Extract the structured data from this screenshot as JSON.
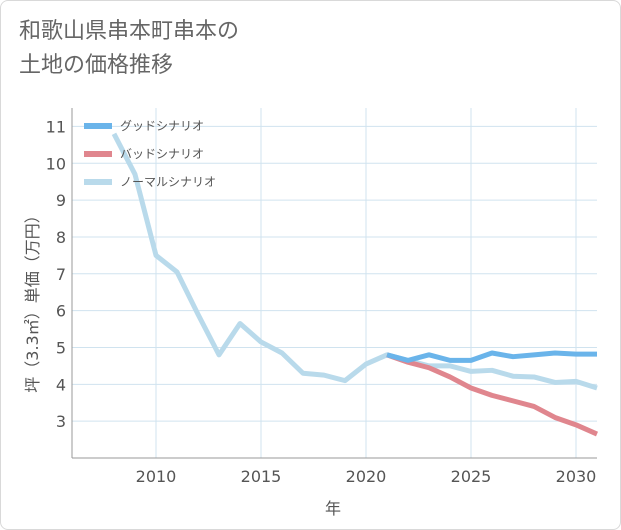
{
  "title_lines": [
    "和歌山県串本町串本の",
    "土地の価格推移"
  ],
  "colors": {
    "good": "#6ab4ea",
    "bad": "#e0868e",
    "normal": "#b9daeb",
    "grid": "#d0e3ef",
    "axis": "#999999"
  },
  "chart_data": {
    "type": "line",
    "title": "和歌山県串本町串本の土地の価格推移",
    "xlabel": "年",
    "ylabel": "坪（3.3㎡）単価（万円）",
    "xlim": [
      2006,
      2031
    ],
    "ylim": [
      2,
      11.5
    ],
    "x_ticks": [
      2010,
      2015,
      2020,
      2025,
      2030
    ],
    "y_ticks": [
      3,
      4,
      5,
      6,
      7,
      8,
      9,
      10,
      11
    ],
    "grid": true,
    "legend_position": "top-left",
    "series": [
      {
        "name": "グッドシナリオ",
        "color": "#6ab4ea",
        "x": [
          2021,
          2022,
          2023,
          2024,
          2025,
          2026,
          2027,
          2028,
          2029,
          2030,
          2031
        ],
        "y": [
          4.8,
          4.65,
          4.8,
          4.65,
          4.65,
          4.85,
          4.75,
          4.8,
          4.85,
          4.82,
          4.82
        ]
      },
      {
        "name": "バッドシナリオ",
        "color": "#e0868e",
        "x": [
          2021,
          2022,
          2023,
          2024,
          2025,
          2026,
          2027,
          2028,
          2029,
          2030,
          2031
        ],
        "y": [
          4.8,
          4.6,
          4.45,
          4.2,
          3.9,
          3.7,
          3.55,
          3.4,
          3.1,
          2.9,
          2.65
        ]
      },
      {
        "name": "ノーマルシナリオ",
        "color": "#b9daeb",
        "x": [
          2008,
          2009,
          2010,
          2011,
          2012,
          2013,
          2014,
          2015,
          2016,
          2017,
          2018,
          2019,
          2020,
          2021,
          2022,
          2023,
          2024,
          2025,
          2026,
          2027,
          2028,
          2029,
          2030,
          2031
        ],
        "y": [
          10.8,
          9.7,
          7.5,
          7.05,
          5.9,
          4.8,
          5.65,
          5.15,
          4.85,
          4.3,
          4.25,
          4.1,
          4.55,
          4.8,
          4.65,
          4.5,
          4.5,
          4.35,
          4.38,
          4.22,
          4.2,
          4.05,
          4.08,
          3.9
        ]
      }
    ]
  }
}
